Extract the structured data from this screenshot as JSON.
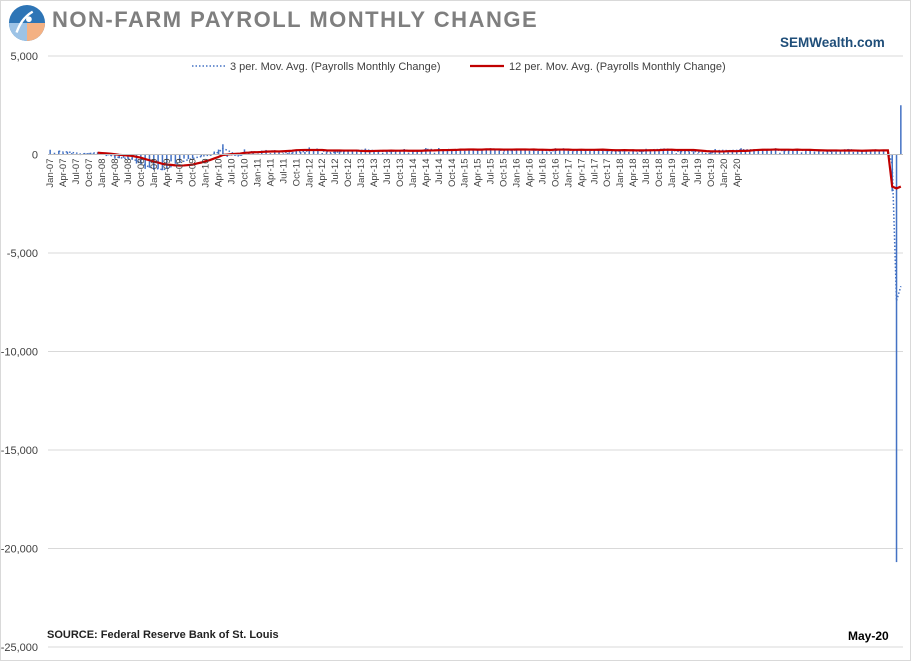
{
  "header": {
    "title": "NON-FARM PAYROLL MONTHLY CHANGE",
    "brand": "SEMWealth.com"
  },
  "footer": {
    "source": "SOURCE:  Federal Reserve Bank of St. Louis",
    "date_stamp": "May-20"
  },
  "colors": {
    "bars": "#4472c4",
    "ma3": "#4472c4",
    "ma12": "#c00000",
    "gridlines": "#d9d9d9",
    "title": "#7f7f7f",
    "brand": "#1f4e79"
  },
  "icons": {
    "logo": "semwealth-logo-icon"
  },
  "chart_data": {
    "type": "bar",
    "title": "NON-FARM PAYROLL MONTHLY CHANGE",
    "xlabel": "",
    "ylabel": "",
    "ylim": [
      -25000,
      5000
    ],
    "yticks": [
      5000,
      0,
      -5000,
      -10000,
      -15000,
      -20000,
      -25000
    ],
    "ytick_labels": [
      "5,000",
      "0",
      "-5,000",
      "-10,000",
      "-15,000",
      "-20,000",
      "-25,000"
    ],
    "grid": true,
    "legend_position": "top",
    "x_start": "Jan-07",
    "x_ticks": [
      "Jan-07",
      "Apr-07",
      "Jul-07",
      "Oct-07",
      "Jan-08",
      "Apr-08",
      "Jul-08",
      "Oct-08",
      "Jan-09",
      "Apr-09",
      "Jul-09",
      "Oct-09",
      "Jan-10",
      "Apr-10",
      "Jul-10",
      "Oct-10",
      "Jan-11",
      "Apr-11",
      "Jul-11",
      "Oct-11",
      "Jan-12",
      "Apr-12",
      "Jul-12",
      "Oct-12",
      "Jan-13",
      "Apr-13",
      "Jul-13",
      "Oct-13",
      "Jan-14",
      "Apr-14",
      "Jul-14",
      "Oct-14",
      "Jan-15",
      "Apr-15",
      "Jul-15",
      "Oct-15",
      "Jan-16",
      "Apr-16",
      "Jul-16",
      "Oct-16",
      "Jan-17",
      "Apr-17",
      "Jul-17",
      "Oct-17",
      "Jan-18",
      "Apr-18",
      "Jul-18",
      "Oct-18",
      "Jan-19",
      "Apr-19",
      "Jul-19",
      "Oct-19",
      "Jan-20",
      "Apr-20"
    ],
    "series": [
      {
        "name": "Payrolls Monthly Change",
        "kind": "bar",
        "values": [
          240,
          90,
          190,
          80,
          140,
          70,
          30,
          -30,
          80,
          80,
          60,
          90,
          10,
          -80,
          -60,
          -210,
          -190,
          -170,
          -210,
          -270,
          -460,
          -480,
          -730,
          -670,
          -780,
          -720,
          -800,
          -700,
          -350,
          -470,
          -340,
          -210,
          -230,
          -200,
          -10,
          -100,
          -10,
          -40,
          150,
          250,
          520,
          -120,
          -50,
          -50,
          -70,
          260,
          120,
          90,
          30,
          200,
          230,
          70,
          220,
          100,
          60,
          70,
          100,
          200,
          130,
          130,
          360,
          220,
          240,
          80,
          110,
          70,
          160,
          170,
          170,
          200,
          190,
          230,
          190,
          300,
          130,
          180,
          200,
          80,
          200,
          190,
          160,
          200,
          280,
          100,
          180,
          180,
          220,
          330,
          250,
          90,
          330,
          240,
          200,
          240,
          230,
          280,
          190,
          270,
          200,
          260,
          240,
          290,
          310,
          210,
          200,
          120,
          250,
          260,
          210,
          290,
          220,
          190,
          280,
          180,
          270,
          150,
          140,
          320,
          280,
          260,
          190,
          170,
          200,
          260,
          220,
          190,
          250,
          200,
          200,
          200,
          150,
          150,
          230,
          220,
          130,
          260,
          110,
          200,
          290,
          220,
          250,
          270,
          290,
          240,
          190,
          70,
          180,
          210,
          150,
          160,
          60,
          20,
          20,
          150,
          280,
          170,
          180,
          220,
          200,
          200,
          320,
          160,
          230,
          270,
          180,
          280,
          280,
          200,
          320,
          90,
          220,
          260,
          240,
          280,
          110,
          270,
          250,
          150,
          180,
          130,
          210,
          150,
          200,
          210,
          260,
          270,
          130,
          210,
          150,
          230,
          240,
          220,
          160,
          170,
          250,
          -1870,
          -20690,
          2500
        ]
      },
      {
        "name": "3 per. Mov. Avg. (Payrolls Monthly Change)",
        "kind": "line",
        "style": "dotted",
        "values": [
          null,
          null,
          173,
          120,
          137,
          97,
          80,
          23,
          27,
          43,
          73,
          77,
          53,
          7,
          -43,
          -117,
          -153,
          -190,
          -190,
          -217,
          -313,
          -403,
          -557,
          -627,
          -727,
          -723,
          -767,
          -740,
          -617,
          -507,
          -387,
          -340,
          -260,
          -213,
          -147,
          -103,
          -40,
          -50,
          33,
          120,
          307,
          217,
          117,
          -73,
          -57,
          47,
          103,
          157,
          80,
          107,
          153,
          167,
          173,
          130,
          127,
          77,
          77,
          123,
          143,
          153,
          207,
          237,
          273,
          180,
          143,
          87,
          113,
          133,
          167,
          180,
          187,
          207,
          203,
          240,
          207,
          203,
          170,
          153,
          160,
          157,
          183,
          183,
          213,
          193,
          187,
          153,
          193,
          243,
          267,
          223,
          223,
          220,
          257,
          227,
          223,
          250,
          233,
          247,
          220,
          243,
          233,
          263,
          280,
          270,
          240,
          177,
          190,
          210,
          240,
          253,
          240,
          233,
          230,
          217,
          243,
          200,
          187,
          203,
          247,
          287,
          243,
          207,
          187,
          210,
          227,
          223,
          220,
          213,
          217,
          200,
          183,
          167,
          177,
          200,
          193,
          203,
          167,
          157,
          200,
          207,
          253,
          247,
          270,
          267,
          240,
          167,
          147,
          153,
          180,
          173,
          123,
          80,
          33,
          63,
          150,
          200,
          210,
          190,
          200,
          207,
          247,
          227,
          237,
          220,
          227,
          243,
          247,
          253,
          267,
          203,
          210,
          190,
          240,
          260,
          210,
          220,
          210,
          223,
          193,
          187,
          173,
          163,
          187,
          187,
          223,
          247,
          220,
          203,
          163,
          197,
          207,
          230,
          207,
          183,
          193,
          -483,
          -7437,
          -6687
        ]
      },
      {
        "name": "12 per. Mov. Avg. (Payrolls Monthly Change)",
        "kind": "line",
        "style": "solid",
        "values": [
          null,
          null,
          null,
          null,
          null,
          null,
          null,
          null,
          null,
          null,
          null,
          91,
          72,
          58,
          37,
          13,
          -15,
          -35,
          -55,
          -71,
          -116,
          -163,
          -229,
          -292,
          -357,
          -410,
          -472,
          -513,
          -526,
          -551,
          -561,
          -556,
          -536,
          -513,
          -453,
          -406,
          -342,
          -283,
          -201,
          -122,
          -25,
          -3,
          21,
          34,
          48,
          86,
          97,
          113,
          116,
          129,
          144,
          154,
          157,
          156,
          166,
          176,
          190,
          218,
          225,
          228,
          228,
          229,
          230,
          231,
          211,
          202,
          202,
          202,
          199,
          200,
          201,
          199,
          181,
          178,
          172,
          181,
          188,
          189,
          193,
          195,
          194,
          194,
          201,
          189,
          189,
          189,
          190,
          203,
          207,
          208,
          219,
          223,
          226,
          230,
          233,
          248,
          248,
          255,
          253,
          247,
          246,
          263,
          261,
          258,
          258,
          248,
          250,
          251,
          253,
          255,
          257,
          251,
          254,
          245,
          242,
          237,
          232,
          249,
          251,
          251,
          249,
          239,
          237,
          243,
          238,
          239,
          237,
          241,
          246,
          236,
          225,
          216,
          219,
          223,
          217,
          217,
          208,
          209,
          212,
          214,
          218,
          224,
          236,
          243,
          240,
          227,
          231,
          227,
          230,
          227,
          208,
          192,
          173,
          163,
          162,
          156,
          156,
          168,
          170,
          169,
          183,
          183,
          197,
          218,
          231,
          242,
          242,
          245,
          257,
          245,
          245,
          245,
          238,
          248,
          238,
          238,
          236,
          225,
          217,
          211,
          202,
          207,
          205,
          201,
          203,
          202,
          204,
          199,
          191,
          198,
          203,
          210,
          206,
          208,
          212,
          -1628,
          -1720,
          -1627
        ]
      }
    ]
  }
}
